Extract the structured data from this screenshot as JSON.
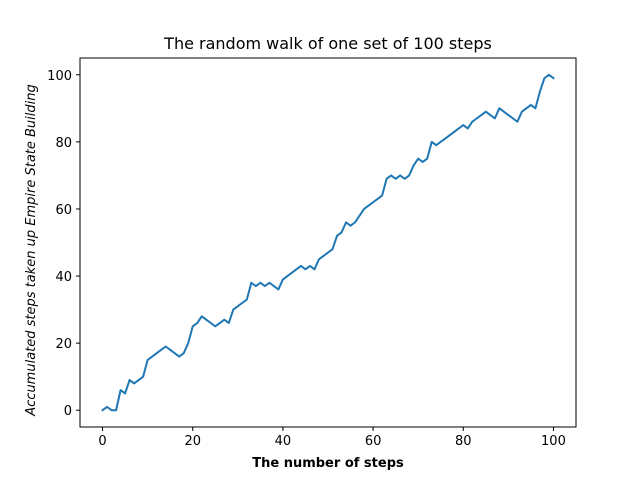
{
  "chart_data": {
    "type": "line",
    "title": "The random walk of one set of 100 steps",
    "xlabel": "The number of steps",
    "ylabel": "Accumulated steps taken up Empire State Building",
    "xlim": [
      -5,
      105
    ],
    "ylim": [
      -5,
      105
    ],
    "xticks": [
      0,
      20,
      40,
      60,
      80,
      100
    ],
    "yticks": [
      0,
      20,
      40,
      60,
      80,
      100
    ],
    "grid": false,
    "series": [
      {
        "color": "#1f77b4",
        "x": [
          0,
          1,
          2,
          3,
          4,
          5,
          6,
          7,
          8,
          9,
          10,
          11,
          12,
          13,
          14,
          15,
          16,
          17,
          18,
          19,
          20,
          21,
          22,
          23,
          24,
          25,
          26,
          27,
          28,
          29,
          30,
          31,
          32,
          33,
          34,
          35,
          36,
          37,
          38,
          39,
          40,
          41,
          42,
          43,
          44,
          45,
          46,
          47,
          48,
          49,
          50,
          51,
          52,
          53,
          54,
          55,
          56,
          57,
          58,
          59,
          60,
          61,
          62,
          63,
          64,
          65,
          66,
          67,
          68,
          69,
          70,
          71,
          72,
          73,
          74,
          75,
          76,
          77,
          78,
          79,
          80,
          81,
          82,
          83,
          84,
          85,
          86,
          87,
          88,
          89,
          90,
          91,
          92,
          93,
          94,
          95,
          96,
          97,
          98,
          99,
          100
        ],
        "y": [
          0,
          1,
          0,
          0,
          6,
          5,
          9,
          8,
          9,
          10,
          15,
          16,
          17,
          18,
          19,
          18,
          17,
          16,
          17,
          20,
          25,
          26,
          28,
          27,
          26,
          25,
          26,
          27,
          26,
          30,
          31,
          32,
          33,
          38,
          37,
          38,
          37,
          38,
          37,
          36,
          39,
          40,
          41,
          42,
          43,
          42,
          43,
          42,
          45,
          46,
          47,
          48,
          52,
          53,
          56,
          55,
          56,
          58,
          60,
          61,
          62,
          63,
          64,
          69,
          70,
          69,
          70,
          69,
          70,
          73,
          75,
          74,
          75,
          80,
          79,
          80,
          81,
          82,
          83,
          84,
          85,
          84,
          86,
          87,
          88,
          89,
          88,
          87,
          90,
          89,
          88,
          87,
          86,
          89,
          90,
          91,
          90,
          95,
          99,
          100,
          99
        ]
      }
    ]
  }
}
